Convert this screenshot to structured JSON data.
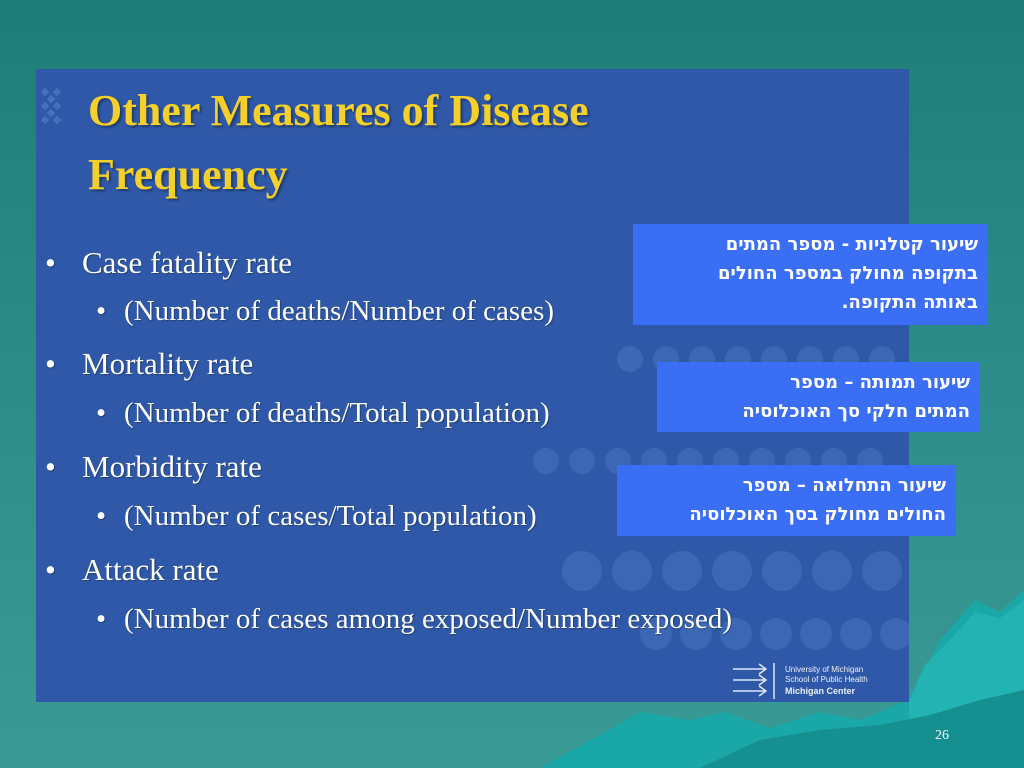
{
  "slide": {
    "title_line1": "Other Measures of Disease",
    "title_line2": "Frequency",
    "bullets": [
      {
        "label": "Case fatality rate",
        "sub": "(Number of deaths/Number of cases)"
      },
      {
        "label": "Mortality rate",
        "sub": "(Number of deaths/Total population)"
      },
      {
        "label": "Morbidity rate",
        "sub": "(Number of cases/Total population)"
      },
      {
        "label": "Attack rate",
        "sub": "(Number of cases among exposed/Number exposed)"
      }
    ],
    "bullet_glyph": "•",
    "notes": [
      {
        "line1": "שיעור קטלניות  - מספר המתים",
        "line2": "בתקופה מחולק במספר החולים",
        "line3": "באותה התקופה."
      },
      {
        "line1": "שיעור תמותה – מספר",
        "line2": "המתים חלקי סך האוכלוסיה"
      },
      {
        "line1": "שיעור התחלואה – מספר",
        "line2": "החולים מחולק בסך האוכלוסיה"
      }
    ],
    "logo": {
      "line1": "University of Michigan",
      "line2": "School of Public Health",
      "line3": "Michigan Center"
    },
    "page_number": "26"
  },
  "colors": {
    "background": "#2c8b86",
    "panel": "#2f59a8",
    "title": "#f5cf2a",
    "note_box": "#3a6ef5",
    "mountain": "#1aa7a7"
  }
}
